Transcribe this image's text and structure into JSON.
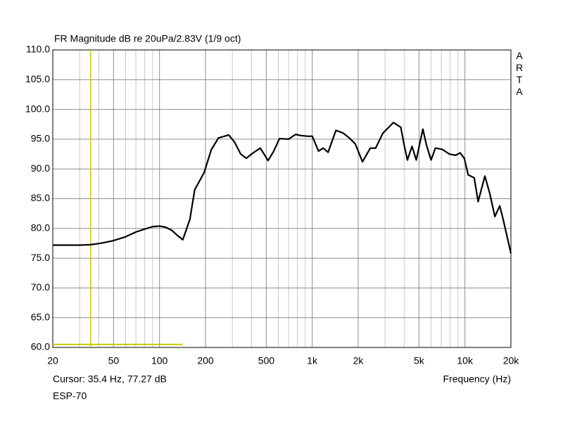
{
  "chart_data": {
    "type": "line",
    "title": "FR Magnitude dB re 20uPa/2.83V (1/9 oct)",
    "side_label": "ARTA",
    "x_label": "Frequency (Hz)",
    "cursor_label": "Cursor: 35.4 Hz, 77.27 dB",
    "footer": "ESP-70",
    "xscale": "log",
    "grid": true,
    "xlim": [
      20,
      20000
    ],
    "xticks": [
      20,
      50,
      100,
      200,
      500,
      {
        "value": 1000,
        "label": "1k"
      },
      {
        "value": 2000,
        "label": "2k"
      },
      {
        "value": 5000,
        "label": "5k"
      },
      {
        "value": 10000,
        "label": "10k"
      },
      {
        "value": 20000,
        "label": "20k"
      }
    ],
    "minor_xticks": [
      30,
      40,
      60,
      70,
      80,
      90,
      300,
      400,
      600,
      700,
      800,
      900,
      3000,
      4000,
      6000,
      7000,
      8000,
      9000
    ],
    "ylim": [
      60,
      110
    ],
    "yticks": [
      {
        "value": 60,
        "label": "60.0"
      },
      {
        "value": 65,
        "label": "65.0"
      },
      {
        "value": 70,
        "label": "70.0"
      },
      {
        "value": 75,
        "label": "75.0"
      },
      {
        "value": 80,
        "label": "80.0"
      },
      {
        "value": 85,
        "label": "85.0"
      },
      {
        "value": 90,
        "label": "90.0"
      },
      {
        "value": 95,
        "label": "95.0"
      },
      {
        "value": 100,
        "label": "100.0"
      },
      {
        "value": 105,
        "label": "105.0"
      },
      {
        "value": 110,
        "label": "110.0"
      }
    ],
    "cursor": {
      "x": 35.4,
      "y": 77.27,
      "color": "#c8c800"
    },
    "cursor_hline": {
      "x": [
        20,
        142
      ],
      "y": 60.5
    },
    "series": [
      {
        "name": "ESP-70",
        "color": "#000000",
        "x": [
          20,
          30,
          35.4,
          41,
          49,
          60,
          70,
          80,
          90,
          100,
          110,
          120,
          130,
          142,
          158,
          170,
          196,
          218,
          243,
          284,
          310,
          340,
          370,
          410,
          457,
          514,
          560,
          610,
          700,
          777,
          850,
          930,
          1000,
          1100,
          1180,
          1270,
          1430,
          1600,
          1750,
          1914,
          2133,
          2400,
          2600,
          2900,
          3400,
          3800,
          4000,
          4200,
          4500,
          4800,
          5300,
          5600,
          6000,
          6400,
          7100,
          7900,
          8700,
          9300,
          9900,
          10500,
          11500,
          12200,
          13500,
          14500,
          15700,
          16900,
          17800,
          20000
        ],
        "values": [
          77.2,
          77.2,
          77.27,
          77.5,
          77.9,
          78.6,
          79.4,
          79.9,
          80.3,
          80.4,
          80.2,
          79.7,
          78.9,
          78.1,
          81.5,
          86.5,
          89.4,
          93.2,
          95.2,
          95.7,
          94.5,
          92.5,
          91.8,
          92.7,
          93.5,
          91.4,
          93,
          95.1,
          95,
          95.8,
          95.6,
          95.5,
          95.5,
          93,
          93.5,
          92.8,
          96.5,
          96,
          95.2,
          94.2,
          91.2,
          93.5,
          93.5,
          96,
          97.8,
          97,
          94,
          91.5,
          93.8,
          91.5,
          96.7,
          94,
          91.5,
          93.5,
          93.3,
          92.5,
          92.3,
          92.7,
          91.8,
          89,
          88.5,
          84.5,
          88.8,
          86,
          82,
          83.8,
          81.5,
          75.8
        ]
      }
    ]
  }
}
